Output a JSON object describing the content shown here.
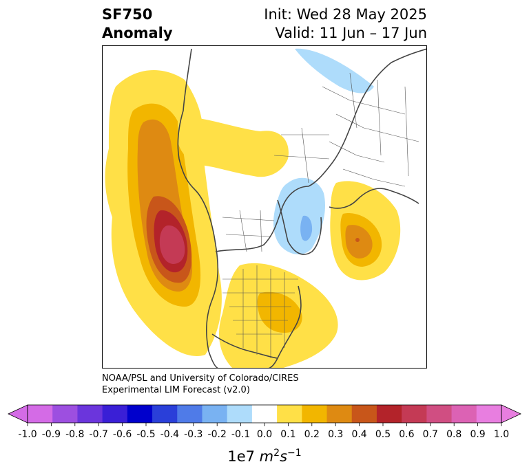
{
  "title": {
    "variable": "SF750",
    "kind": "Anomaly",
    "init": "Init: Wed 28 May 2025",
    "valid": "Valid: 11 Jun – 17 Jun"
  },
  "credit": {
    "line1": "NOAA/PSL and University of Colorado/CIRES",
    "line2": "Experimental LIM Forecast (v2.0)"
  },
  "colorbar": {
    "ticks": [
      "-1.0",
      "-0.9",
      "-0.8",
      "-0.7",
      "-0.6",
      "-0.5",
      "-0.4",
      "-0.3",
      "-0.2",
      "-0.1",
      "0.0",
      "0.1",
      "0.2",
      "0.3",
      "0.4",
      "0.5",
      "0.6",
      "0.7",
      "0.8",
      "0.9",
      "1.0"
    ],
    "colors": [
      "#d46be6",
      "#9d4fe0",
      "#6b35dc",
      "#3a1fd6",
      "#0000cc",
      "#2a3fd9",
      "#4f7be8",
      "#79b2f2",
      "#aedcfb",
      "#ffffff",
      "#ffe047",
      "#f2b600",
      "#de8a12",
      "#c8561a",
      "#b3232a",
      "#c43a55",
      "#d04e82",
      "#dc62b4",
      "#e87ee0"
    ],
    "under_color": "#d46be6",
    "over_color": "#e87ee0",
    "units_prefix": "1e7 ",
    "units_m": "m",
    "units_m_exp": "2",
    "units_s": "s",
    "units_s_exp": "−1"
  },
  "map": {
    "projection": "north polar stereographic",
    "anomaly_features": [
      {
        "region": "North Pacific",
        "sign": "positive",
        "peak": 0.8
      },
      {
        "region": "North Atlantic / Europe",
        "sign": "positive",
        "peak": 0.4
      },
      {
        "region": "Eastern United States",
        "sign": "positive",
        "peak": 0.3
      },
      {
        "region": "Scandinavia / Barents Sea",
        "sign": "negative",
        "peak": -0.3
      },
      {
        "region": "Eastern Siberia",
        "sign": "negative",
        "peak": -0.2
      }
    ]
  }
}
